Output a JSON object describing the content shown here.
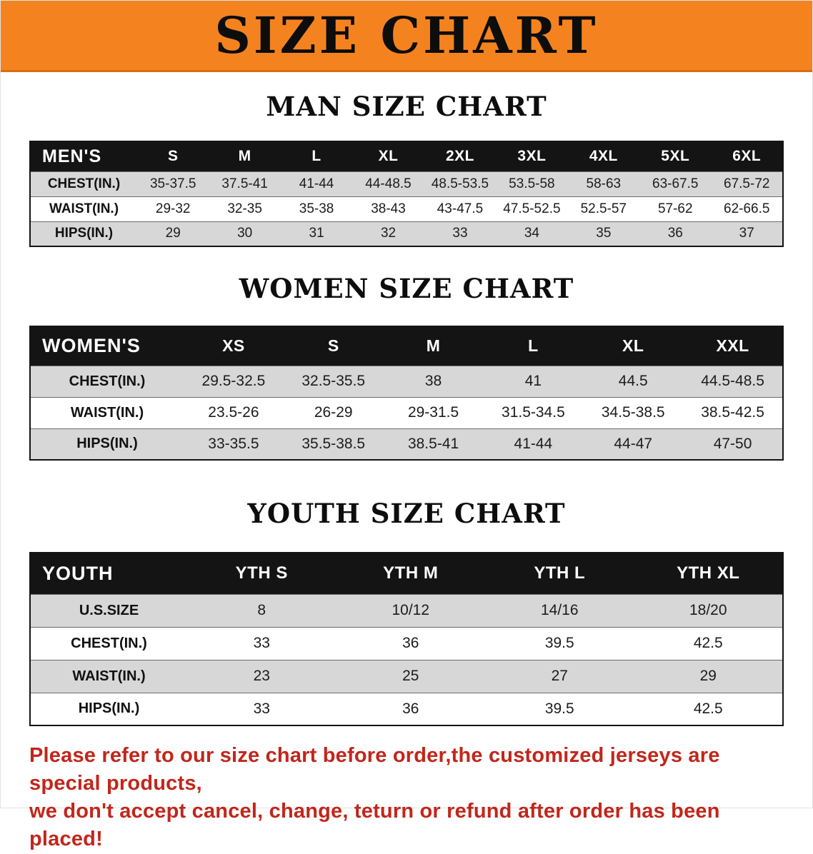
{
  "banner": {
    "title": "SIZE CHART",
    "bg_color": "#f4831f",
    "text_color": "#0d0d0d"
  },
  "sections": [
    {
      "heading": "MAN SIZE CHART",
      "table": {
        "header": [
          "MEN'S",
          "S",
          "M",
          "L",
          "XL",
          "2XL",
          "3XL",
          "4XL",
          "5XL",
          "6XL"
        ],
        "rows": [
          {
            "label": "CHEST(IN.)",
            "values": [
              "35-37.5",
              "37.5-41",
              "41-44",
              "44-48.5",
              "48.5-53.5",
              "53.5-58",
              "58-63",
              "63-67.5",
              "67.5-72"
            ]
          },
          {
            "label": "WAIST(IN.)",
            "values": [
              "29-32",
              "32-35",
              "35-38",
              "38-43",
              "43-47.5",
              "47.5-52.5",
              "52.5-57",
              "57-62",
              "62-66.5"
            ]
          },
          {
            "label": "HIPS(IN.)",
            "values": [
              "29",
              "30",
              "31",
              "32",
              "33",
              "34",
              "35",
              "36",
              "37"
            ]
          }
        ]
      }
    },
    {
      "heading": "WOMEN SIZE CHART",
      "table": {
        "header": [
          "WOMEN'S",
          "XS",
          "S",
          "M",
          "L",
          "XL",
          "XXL"
        ],
        "rows": [
          {
            "label": "CHEST(IN.)",
            "values": [
              "29.5-32.5",
              "32.5-35.5",
              "38",
              "41",
              "44.5",
              "44.5-48.5"
            ]
          },
          {
            "label": "WAIST(IN.)",
            "values": [
              "23.5-26",
              "26-29",
              "29-31.5",
              "31.5-34.5",
              "34.5-38.5",
              "38.5-42.5"
            ]
          },
          {
            "label": "HIPS(IN.)",
            "values": [
              "33-35.5",
              "35.5-38.5",
              "38.5-41",
              "41-44",
              "44-47",
              "47-50"
            ]
          }
        ]
      }
    },
    {
      "heading": "YOUTH SIZE CHART",
      "table": {
        "header": [
          "YOUTH",
          "YTH S",
          "YTH M",
          "YTH L",
          "YTH XL"
        ],
        "rows": [
          {
            "label": "U.S.SIZE",
            "values": [
              "8",
              "10/12",
              "14/16",
              "18/20"
            ]
          },
          {
            "label": "CHEST(IN.)",
            "values": [
              "33",
              "36",
              "39.5",
              "42.5"
            ]
          },
          {
            "label": "WAIST(IN.)",
            "values": [
              "23",
              "25",
              "27",
              "29"
            ]
          },
          {
            "label": "HIPS(IN.)",
            "values": [
              "33",
              "36",
              "39.5",
              "42.5"
            ]
          }
        ]
      }
    }
  ],
  "disclaimer": {
    "line1": "Please refer to our size chart before order,the customized jerseys are special products,",
    "line2": "we don't accept cancel, change, teturn or refund after order has been placed!",
    "text_color": "#c2261b"
  },
  "colors": {
    "banner_orange": "#f4831f",
    "table_header_black": "#141414",
    "row_gray": "#d7d7d7",
    "row_white": "#ffffff",
    "disclaimer_red": "#c2261b"
  }
}
